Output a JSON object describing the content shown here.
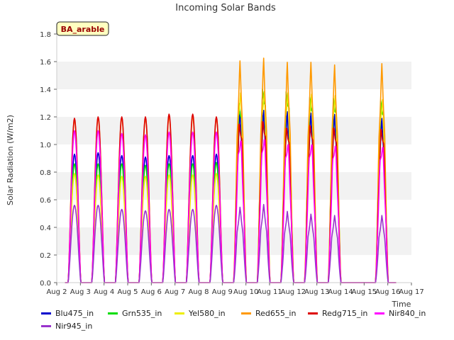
{
  "chart_data": {
    "type": "line",
    "title": "Incoming Solar Bands",
    "xlabel": "Time",
    "ylabel": "Solar Radiation (W/m2)",
    "badge": "BA_arable",
    "ylim": [
      0,
      1.8
    ],
    "yticks": [
      "0.0",
      "0.2",
      "0.4",
      "0.6",
      "0.8",
      "1.0",
      "1.2",
      "1.4",
      "1.6",
      "1.8"
    ],
    "xlim": [
      2,
      17
    ],
    "xticks": [
      {
        "v": 2,
        "label": "Aug 2"
      },
      {
        "v": 3,
        "label": "Aug 3"
      },
      {
        "v": 4,
        "label": "Aug 4"
      },
      {
        "v": 5,
        "label": "Aug 5"
      },
      {
        "v": 6,
        "label": "Aug 6"
      },
      {
        "v": 7,
        "label": "Aug 7"
      },
      {
        "v": 8,
        "label": "Aug 8"
      },
      {
        "v": 9,
        "label": "Aug 9"
      },
      {
        "v": 10,
        "label": "Aug 10"
      },
      {
        "v": 11,
        "label": "Aug 11"
      },
      {
        "v": 12,
        "label": "Aug 12"
      },
      {
        "v": 13,
        "label": "Aug 13"
      },
      {
        "v": 14,
        "label": "Aug 14"
      },
      {
        "v": 15,
        "label": "Aug 15"
      },
      {
        "v": 16,
        "label": "Aug 16"
      },
      {
        "v": 17,
        "label": "Aug 17"
      }
    ],
    "grid": "horizontal bands",
    "legend_position": "bottom",
    "day_centers": [
      2.75,
      3.75,
      4.75,
      5.75,
      6.75,
      7.75,
      8.75,
      9.75,
      10.75,
      11.75,
      12.75,
      13.75,
      15.75
    ],
    "data_range": [
      2.35,
      16.35
    ],
    "series": [
      {
        "name": "Blu475_in",
        "color": "#0000cc",
        "peaks": [
          0.93,
          0.94,
          0.92,
          0.91,
          0.92,
          0.92,
          0.93,
          1.27,
          1.28,
          1.27,
          1.26,
          1.25,
          1.22
        ]
      },
      {
        "name": "Grn535_in",
        "color": "#00dd00",
        "peaks": [
          0.86,
          0.86,
          0.86,
          0.85,
          0.86,
          0.86,
          0.87,
          1.38,
          1.49,
          1.47,
          1.43,
          1.42,
          1.4
        ]
      },
      {
        "name": "Yel580_in",
        "color": "#eeee00",
        "peaks": [
          0.79,
          0.78,
          0.77,
          0.77,
          0.78,
          0.78,
          0.79,
          1.45,
          1.46,
          1.45,
          1.44,
          1.43,
          1.4
        ]
      },
      {
        "name": "Red655_in",
        "color": "#ff9900",
        "peaks": [
          1.18,
          1.19,
          1.19,
          1.19,
          1.2,
          1.2,
          1.19,
          1.62,
          1.64,
          1.61,
          1.61,
          1.59,
          1.6
        ]
      },
      {
        "name": "Redg715_in",
        "color": "#dd0000",
        "peaks": [
          1.19,
          1.2,
          1.2,
          1.2,
          1.22,
          1.22,
          1.2,
          1.23,
          1.25,
          1.2,
          1.22,
          1.2,
          1.19
        ]
      },
      {
        "name": "Nir840_in",
        "color": "#ff00ff",
        "peaks": [
          1.1,
          1.1,
          1.08,
          1.07,
          1.09,
          1.09,
          1.09,
          1.1,
          1.11,
          1.07,
          1.07,
          1.06,
          1.05
        ]
      },
      {
        "name": "Nir945_in",
        "color": "#9933cc",
        "peaks": [
          0.56,
          0.56,
          0.53,
          0.52,
          0.53,
          0.53,
          0.56,
          0.55,
          0.57,
          0.52,
          0.5,
          0.49,
          0.49
        ]
      }
    ]
  }
}
